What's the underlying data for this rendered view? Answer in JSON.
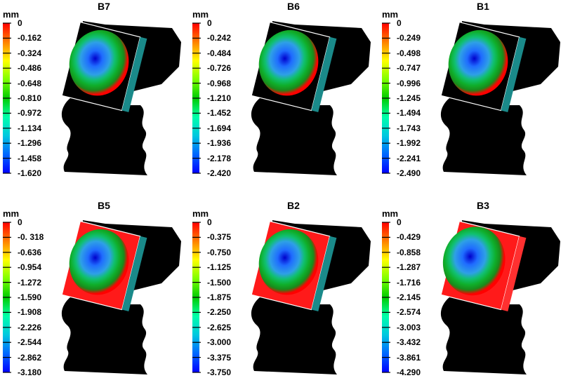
{
  "colors": {
    "scale": [
      "#ff0000",
      "#ff7f00",
      "#ffff00",
      "#7fff00",
      "#00cc00",
      "#00ffaa",
      "#00c8e0",
      "#0066ff",
      "#0000ff"
    ],
    "model_body": "#000000",
    "stiffener": "#1a8a8a",
    "panel_background": "#ffffff"
  },
  "panels": [
    {
      "title": "B7",
      "unit": "mm",
      "min": -1.62,
      "block": "open",
      "ticks": [
        "0",
        "-0.162",
        "-0.324",
        "-0.486",
        "-0.648",
        "-0.810",
        "-0.972",
        "-1.134",
        "-1.296",
        "-1.458",
        "-1.620"
      ]
    },
    {
      "title": "B6",
      "unit": "mm",
      "min": -2.42,
      "block": "open",
      "ticks": [
        "0",
        "-0.242",
        "-0.484",
        "-0.726",
        "-0.968",
        "-1.210",
        "-1.452",
        "-1.694",
        "-1.936",
        "-2.178",
        "-2.420"
      ]
    },
    {
      "title": "B1",
      "unit": "mm",
      "min": -2.49,
      "block": "open",
      "ticks": [
        "0",
        "-0.249",
        "-0.498",
        "-0.747",
        "-0.996",
        "-1.245",
        "-1.494",
        "-1.743",
        "-1.992",
        "-2.241",
        "-2.490"
      ]
    },
    {
      "title": "B5",
      "unit": "mm",
      "min": -3.18,
      "block": "red",
      "ticks": [
        "0",
        "-0. 318",
        "-0.636",
        "-0.954",
        "-1.272",
        "-1.590",
        "-1.908",
        "-2.226",
        "-2.544",
        "-2.862",
        "-3.180"
      ]
    },
    {
      "title": "B2",
      "unit": "mm",
      "min": -3.75,
      "block": "red",
      "ticks": [
        "0",
        "-0.375",
        "-0.750",
        "-1.125",
        "-1.500",
        "-1.875",
        "-2.250",
        "-2.625",
        "-3.000",
        "-3.375",
        "-3.750"
      ]
    },
    {
      "title": "B3",
      "unit": "mm",
      "min": -4.29,
      "block": "red-full",
      "ticks": [
        "0",
        "-0.429",
        "-0.858",
        "-1.287",
        "-1.716",
        "-2.145",
        "-2.574",
        "-3.003",
        "-3.432",
        "-3.861",
        "-4.290"
      ]
    }
  ]
}
